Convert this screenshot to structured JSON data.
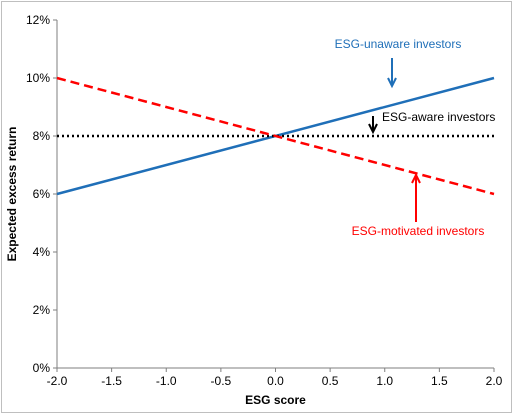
{
  "chart_data": {
    "type": "line",
    "title": "",
    "xlabel": "ESG score",
    "ylabel": "Expected excess return",
    "xlim": [
      -2.0,
      2.0
    ],
    "ylim": [
      0,
      12
    ],
    "x_ticks": [
      "-2.0",
      "-1.5",
      "-1.0",
      "-0.5",
      "0.0",
      "0.5",
      "1.0",
      "1.5",
      "2.0"
    ],
    "y_ticks": [
      "0%",
      "2%",
      "4%",
      "6%",
      "8%",
      "10%",
      "12%"
    ],
    "grid": false,
    "legend": "none",
    "series": [
      {
        "name": "ESG-unaware investors",
        "style": "solid",
        "color": "#1f6fb8",
        "x": [
          -2.0,
          2.0
        ],
        "y": [
          6,
          10
        ]
      },
      {
        "name": "ESG-aware investors",
        "style": "dotted",
        "color": "#000000",
        "x": [
          -2.0,
          2.0
        ],
        "y": [
          8,
          8
        ]
      },
      {
        "name": "ESG-motivated investors",
        "style": "dashed",
        "color": "#ff0000",
        "x": [
          -2.0,
          2.0
        ],
        "y": [
          10,
          6
        ]
      }
    ],
    "annotations": [
      {
        "text": "ESG-unaware investors",
        "color": "#1f6fb8",
        "arrow_to": [
          1.05,
          9.5
        ]
      },
      {
        "text": "ESG-aware investors",
        "color": "#000000",
        "arrow_to": [
          0.9,
          8.05
        ]
      },
      {
        "text": "ESG-motivated investors",
        "color": "#ff0000",
        "arrow_to": [
          1.28,
          6.75
        ]
      }
    ]
  }
}
